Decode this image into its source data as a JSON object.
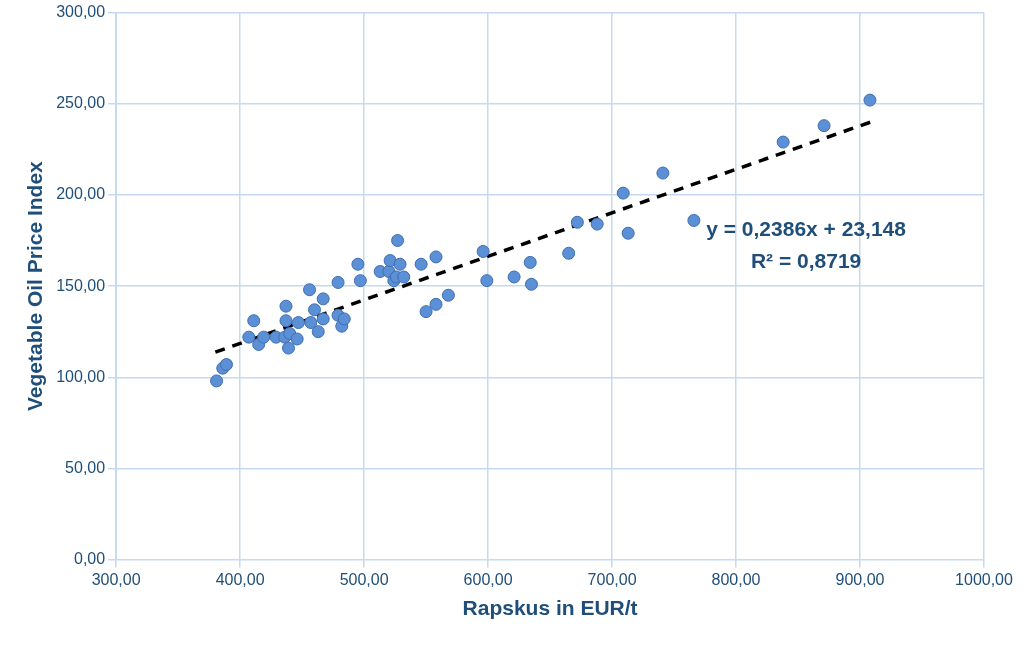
{
  "chart_data": {
    "type": "scatter",
    "xlabel": "Rapskus in EUR/t",
    "ylabel": "Vegetable Oil Price Index",
    "xlim": [
      300,
      1000
    ],
    "xticks": [
      {
        "value": 300,
        "label": "300,00"
      },
      {
        "value": 400,
        "label": "400,00"
      },
      {
        "value": 500,
        "label": "500,00"
      },
      {
        "value": 600,
        "label": "600,00"
      },
      {
        "value": 700,
        "label": "700,00"
      },
      {
        "value": 800,
        "label": "800,00"
      },
      {
        "value": 900,
        "label": "900,00"
      },
      {
        "value": 1000,
        "label": "1000,00"
      }
    ],
    "ylim": [
      0,
      300
    ],
    "yticks": [
      {
        "value": 0,
        "label": "0,00"
      },
      {
        "value": 50,
        "label": "50,00"
      },
      {
        "value": 100,
        "label": "100,00"
      },
      {
        "value": 150,
        "label": "150,00"
      },
      {
        "value": 200,
        "label": "200,00"
      },
      {
        "value": 250,
        "label": "250,00"
      },
      {
        "value": 300,
        "label": "300,00"
      }
    ],
    "grid": true,
    "legend": false,
    "marker": "circle",
    "series": [
      {
        "type": "scatter",
        "color": "#5b8fd6",
        "x": [
          381,
          386,
          389,
          407,
          411,
          415,
          419,
          429,
          436,
          440,
          446,
          439,
          437,
          437,
          447,
          456,
          457,
          460,
          463,
          467,
          467,
          479,
          479,
          482,
          484,
          495,
          497,
          513,
          520,
          521,
          524,
          526,
          529,
          532,
          527,
          546,
          550,
          558,
          558,
          568,
          596,
          599,
          621,
          634,
          635,
          665,
          672,
          688,
          709,
          713,
          741,
          766,
          838,
          871,
          908
        ],
        "values": [
          98,
          105,
          107,
          122,
          131,
          118,
          122,
          122,
          122,
          124,
          121,
          116,
          131,
          139,
          130,
          148,
          130,
          137,
          125,
          143,
          132,
          152,
          134,
          128,
          132,
          162,
          153,
          158,
          158,
          164,
          153,
          155,
          162,
          155,
          175,
          162,
          136,
          166,
          140,
          145,
          169,
          153,
          155,
          163,
          151,
          168,
          185,
          184,
          201,
          179,
          212,
          186,
          229,
          238,
          252
        ]
      },
      {
        "type": "line",
        "color": "#000000",
        "line_style": "dashed",
        "marker": "none",
        "x": [
          380,
          910
        ],
        "values": [
          113.8,
          240.3
        ]
      }
    ],
    "annotations": [
      "y = 0,2386x + 23,148",
      "R² = 0,8719"
    ]
  }
}
